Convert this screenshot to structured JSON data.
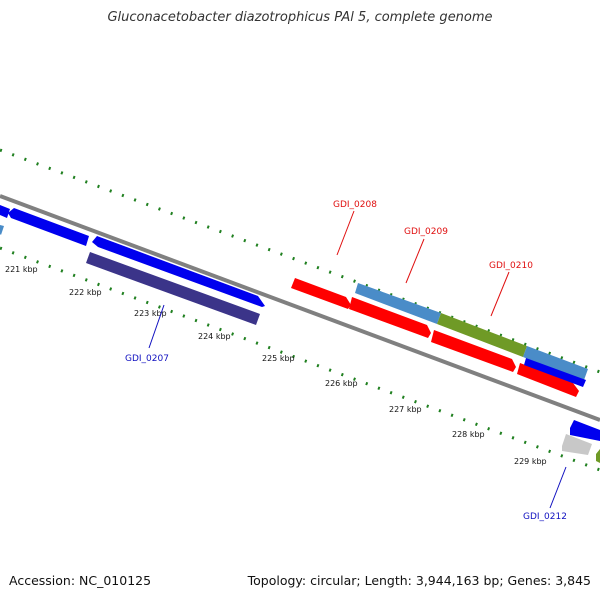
{
  "title": "Gluconacetobacter diazotrophicus PAl 5, complete genome",
  "footer": {
    "accession": "Accession: NC_010125",
    "summary": "Topology: circular; Length: 3,944,163 bp; Genes: 3,845"
  },
  "colors": {
    "forward_label": "#e01010",
    "reverse_label": "#1010c0",
    "backbone": "#808080",
    "ticks": "#208020",
    "gene_red": "#ff0000",
    "gene_blue": "#0000ee",
    "gene_steel": "#4a8cc8",
    "gene_olive": "#6f9a26",
    "gene_navy": "#3b3489",
    "gene_gray": "#c8c8c8"
  },
  "scale_labels": [
    "221 kbp",
    "222 kbp",
    "223 kbp",
    "224 kbp",
    "225 kbp",
    "226 kbp",
    "227 kbp",
    "228 kbp",
    "229 kbp"
  ],
  "gene_labels": {
    "forward": [
      "GDI_0208",
      "GDI_0209",
      "GDI_0210"
    ],
    "reverse": [
      "GDI_0207",
      "GDI_0212"
    ]
  }
}
